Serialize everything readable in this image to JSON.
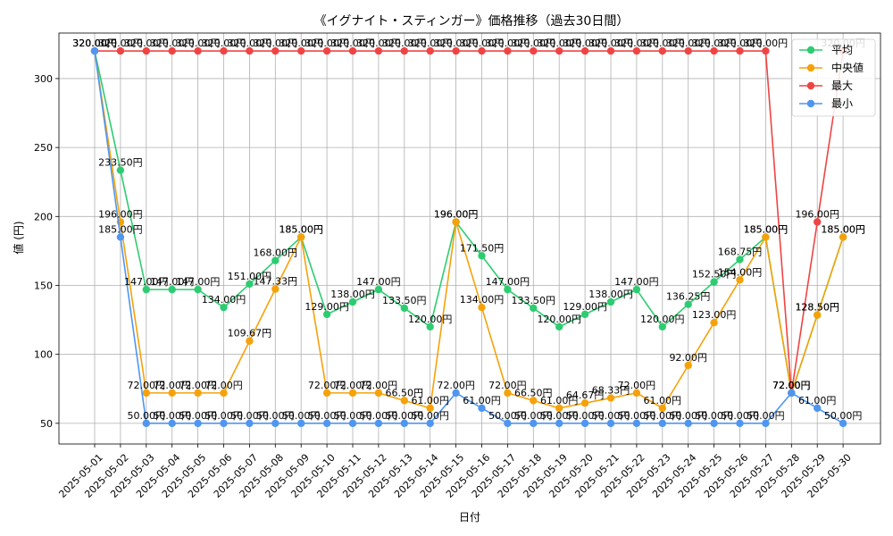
{
  "chart_data": {
    "type": "line",
    "title": "《イグナイト・スティンガー》価格推移（過去30日間）",
    "xlabel": "日付",
    "ylabel": "値 (円)",
    "yticks": [
      50,
      100,
      150,
      200,
      250,
      300
    ],
    "ylim": [
      35,
      333
    ],
    "grid": true,
    "legend_position": "top-right",
    "label_suffix": "円",
    "categories": [
      "2025-05-01",
      "2025-05-02",
      "2025-05-03",
      "2025-05-04",
      "2025-05-05",
      "2025-05-06",
      "2025-05-07",
      "2025-05-08",
      "2025-05-09",
      "2025-05-10",
      "2025-05-11",
      "2025-05-12",
      "2025-05-13",
      "2025-05-14",
      "2025-05-15",
      "2025-05-16",
      "2025-05-17",
      "2025-05-18",
      "2025-05-19",
      "2025-05-20",
      "2025-05-21",
      "2025-05-22",
      "2025-05-23",
      "2025-05-24",
      "2025-05-25",
      "2025-05-26",
      "2025-05-27",
      "2025-05-28",
      "2025-05-29",
      "2025-05-30"
    ],
    "series": [
      {
        "name": "平均",
        "color": "#2ecc71",
        "values": [
          320.0,
          233.5,
          147.0,
          147.0,
          147.0,
          134.0,
          151.0,
          168.0,
          185.0,
          129.0,
          138.0,
          147.0,
          133.5,
          120.0,
          196.0,
          171.5,
          147.0,
          133.5,
          120.0,
          129.0,
          138.0,
          147.0,
          120.0,
          136.25,
          152.5,
          168.75,
          185.0,
          72.0,
          128.5,
          185.0
        ]
      },
      {
        "name": "中央値",
        "color": "#f5a20a",
        "values": [
          320.0,
          196.0,
          72.0,
          72.0,
          72.0,
          72.0,
          109.67,
          147.33,
          185.0,
          72.0,
          72.0,
          72.0,
          66.5,
          61.0,
          196.0,
          134.0,
          72.0,
          66.5,
          61.0,
          64.67,
          68.33,
          72.0,
          61.0,
          92.0,
          123.0,
          154.0,
          185.0,
          72.0,
          128.5,
          185.0
        ]
      },
      {
        "name": "最大",
        "color": "#ef4444",
        "values": [
          320.0,
          320.0,
          320.0,
          320.0,
          320.0,
          320.0,
          320.0,
          320.0,
          320.0,
          320.0,
          320.0,
          320.0,
          320.0,
          320.0,
          320.0,
          320.0,
          320.0,
          320.0,
          320.0,
          320.0,
          320.0,
          320.0,
          320.0,
          320.0,
          320.0,
          320.0,
          320.0,
          72.0,
          196.0,
          320.0
        ]
      },
      {
        "name": "最小",
        "color": "#4f96f0",
        "values": [
          320.0,
          185.0,
          50.0,
          50.0,
          50.0,
          50.0,
          50.0,
          50.0,
          50.0,
          50.0,
          50.0,
          50.0,
          50.0,
          50.0,
          72.0,
          61.0,
          50.0,
          50.0,
          50.0,
          50.0,
          50.0,
          50.0,
          50.0,
          50.0,
          50.0,
          50.0,
          50.0,
          72.0,
          61.0,
          50.0
        ]
      }
    ]
  }
}
